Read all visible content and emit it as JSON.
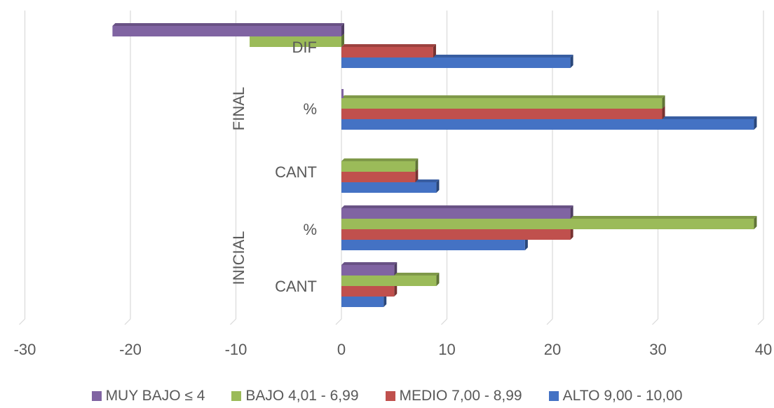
{
  "chart_data": {
    "type": "bar",
    "orientation": "horizontal",
    "style": "3d-clustered",
    "title": "",
    "xlabel": "",
    "ylabel": "",
    "xlim": [
      -30,
      40
    ],
    "xticks": [
      -30,
      -20,
      -10,
      0,
      10,
      20,
      30,
      40
    ],
    "grid": true,
    "legend_position": "bottom",
    "groups": [
      {
        "label": "INICIAL",
        "categories": [
          "CANT",
          "%"
        ]
      },
      {
        "label": "FINAL",
        "categories": [
          "CANT",
          "%",
          "DIF"
        ]
      }
    ],
    "categories": [
      "CANT",
      "%",
      "CANT",
      "%",
      "DIF"
    ],
    "series": [
      {
        "name": "ALTO 9,00 - 10,00",
        "color": "#4472c4",
        "values": [
          4,
          17.4,
          9,
          39.1,
          21.7
        ]
      },
      {
        "name": "MEDIO 7,00 - 8,99",
        "color": "#c0504d",
        "values": [
          5,
          21.7,
          7,
          30.4,
          8.7
        ]
      },
      {
        "name": "BAJO 4,01 - 6,99",
        "color": "#9bbb59",
        "values": [
          9,
          39.1,
          7,
          30.4,
          -8.7
        ]
      },
      {
        "name": "MUY BAJO ≤ 4",
        "color": "#8064a2",
        "values": [
          5,
          21.7,
          0,
          0,
          -21.7
        ]
      }
    ],
    "legend_order": [
      3,
      2,
      1,
      0
    ]
  }
}
